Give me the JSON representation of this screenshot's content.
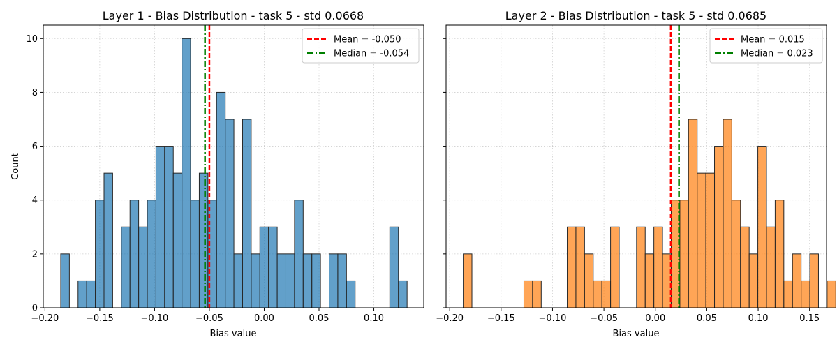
{
  "ylabel": "Count",
  "colors": {
    "median_line": "#008000",
    "mean_line": "#ff0000",
    "bar_edge": "#262626"
  },
  "chart_data": [
    {
      "type": "bar",
      "title": "Layer 1 - Bias Distribution - task 5 - std 0.0668",
      "xlabel": "Bias value",
      "ylabel": "Count",
      "xlim": [
        -0.2015,
        0.1455
      ],
      "ylim": [
        0,
        10.5
      ],
      "xticks": [
        -0.2,
        -0.15,
        -0.1,
        -0.05,
        0.0,
        0.05,
        0.1
      ],
      "xtick_labels": [
        "−0.20",
        "−0.15",
        "−0.10",
        "−0.05",
        "0.00",
        "0.05",
        "0.10"
      ],
      "yticks": [
        0,
        2,
        4,
        6,
        8,
        10
      ],
      "ytick_labels": [
        "0",
        "2",
        "4",
        "6",
        "8",
        "10"
      ],
      "bin_start": -0.1856,
      "bin_width": 0.007898,
      "counts": [
        2,
        0,
        1,
        1,
        4,
        5,
        0,
        3,
        4,
        3,
        4,
        6,
        6,
        5,
        10,
        4,
        5,
        4,
        8,
        7,
        2,
        7,
        2,
        3,
        3,
        2,
        2,
        4,
        2,
        2,
        0,
        2,
        2,
        1,
        0,
        0,
        0,
        0,
        3,
        1
      ],
      "bar_color": "#1f77b4",
      "mean": -0.05,
      "median": -0.054,
      "legend_position": "upper right",
      "legend": [
        "Mean = -0.050",
        "Median = -0.054"
      ],
      "grid": true
    },
    {
      "type": "bar",
      "title": "Layer 2 - Bias Distribution - task 5 - std 0.0685",
      "xlabel": "Bias value",
      "ylabel": "",
      "xlim": [
        -0.2035,
        0.1665
      ],
      "ylim": [
        0,
        10.5
      ],
      "xticks": [
        -0.2,
        -0.15,
        -0.1,
        -0.05,
        0.0,
        0.05,
        0.1,
        0.15
      ],
      "xtick_labels": [
        "−0.20",
        "−0.15",
        "−0.10",
        "−0.05",
        "0.00",
        "0.05",
        "0.10",
        "0.15"
      ],
      "yticks": [
        0,
        2,
        4,
        6,
        8,
        10
      ],
      "ytick_labels": [],
      "bin_start": -0.1868,
      "bin_width": 0.008426,
      "counts": [
        2,
        0,
        0,
        0,
        0,
        0,
        0,
        1,
        1,
        0,
        0,
        0,
        3,
        3,
        2,
        1,
        1,
        3,
        0,
        0,
        3,
        2,
        3,
        2,
        4,
        4,
        7,
        5,
        5,
        6,
        7,
        4,
        3,
        2,
        6,
        3,
        4,
        1,
        2,
        1,
        2,
        0,
        1
      ],
      "bar_color": "#ff7f0e",
      "mean": 0.015,
      "median": 0.023,
      "legend_position": "upper right",
      "legend": [
        "Mean = 0.015",
        "Median = 0.023"
      ],
      "grid": true
    }
  ]
}
